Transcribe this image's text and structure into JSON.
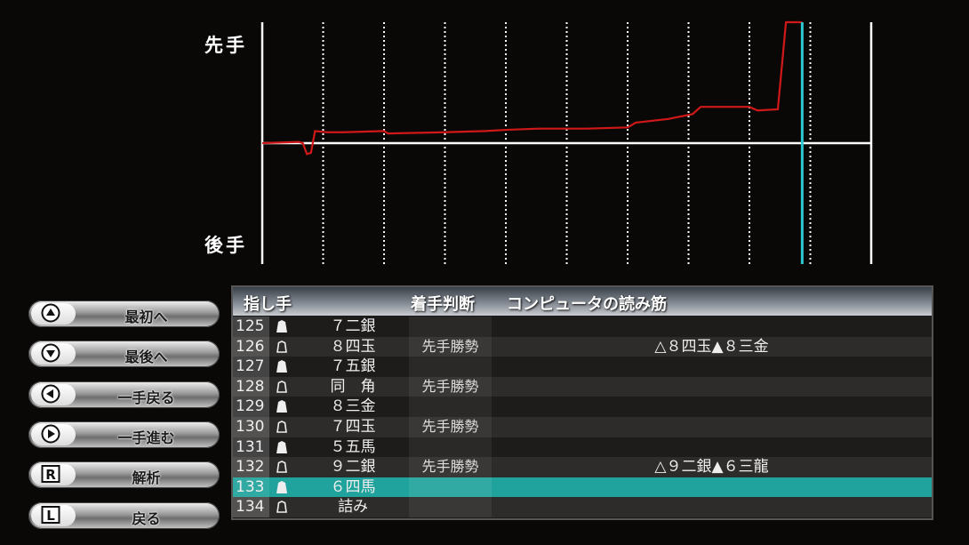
{
  "chart_data": {
    "type": "line",
    "y_top_label": "先手",
    "y_bottom_label": "後手",
    "xlim": [
      0,
      150
    ],
    "ylim": [
      -1,
      1
    ],
    "grid_x_every": 15,
    "current_move": 133,
    "colors": {
      "line": "#d01818",
      "axis": "#ffffff",
      "current": "#2ec8d0",
      "grid": "#ffffff"
    },
    "series": [
      {
        "x": [
          0,
          9,
          10,
          11,
          12,
          13,
          16,
          20,
          30,
          31,
          45,
          55,
          60,
          68,
          80,
          90,
          92,
          100,
          106,
          108,
          120,
          122,
          127,
          129,
          133
        ],
        "y": [
          0,
          0.01,
          0,
          -0.09,
          -0.08,
          0.1,
          0.09,
          0.09,
          0.1,
          0.08,
          0.09,
          0.1,
          0.11,
          0.12,
          0.12,
          0.13,
          0.17,
          0.2,
          0.24,
          0.3,
          0.3,
          0.27,
          0.28,
          1,
          1
        ]
      }
    ]
  },
  "buttons": [
    {
      "key": "up",
      "label": "最初へ"
    },
    {
      "key": "down",
      "label": "最後へ"
    },
    {
      "key": "left",
      "label": "一手戻る"
    },
    {
      "key": "right",
      "label": "一手進む"
    },
    {
      "key": "R",
      "label": "解析"
    },
    {
      "key": "L",
      "label": "戻る"
    }
  ],
  "table": {
    "headers": {
      "move": "指し手",
      "judgment": "着手判断",
      "reading": "コンピュータの読み筋"
    },
    "selected": 133,
    "rows": [
      {
        "num": "125",
        "side": "sente",
        "move": "７二銀",
        "judgment": "",
        "reading": ""
      },
      {
        "num": "126",
        "side": "gote",
        "move": "８四玉",
        "judgment": "先手勝勢",
        "reading": "△８四玉▲８三金"
      },
      {
        "num": "127",
        "side": "sente",
        "move": "７五銀",
        "judgment": "",
        "reading": ""
      },
      {
        "num": "128",
        "side": "gote",
        "move": "同　角",
        "judgment": "先手勝勢",
        "reading": ""
      },
      {
        "num": "129",
        "side": "sente",
        "move": "８三金",
        "judgment": "",
        "reading": ""
      },
      {
        "num": "130",
        "side": "gote",
        "move": "７四玉",
        "judgment": "先手勝勢",
        "reading": ""
      },
      {
        "num": "131",
        "side": "sente",
        "move": "５五馬",
        "judgment": "",
        "reading": ""
      },
      {
        "num": "132",
        "side": "gote",
        "move": "９二銀",
        "judgment": "先手勝勢",
        "reading": "△９二銀▲６三龍"
      },
      {
        "num": "133",
        "side": "sente",
        "move": "６四馬",
        "judgment": "",
        "reading": ""
      },
      {
        "num": "134",
        "side": "gote",
        "move": "詰み",
        "judgment": "",
        "reading": ""
      }
    ]
  }
}
